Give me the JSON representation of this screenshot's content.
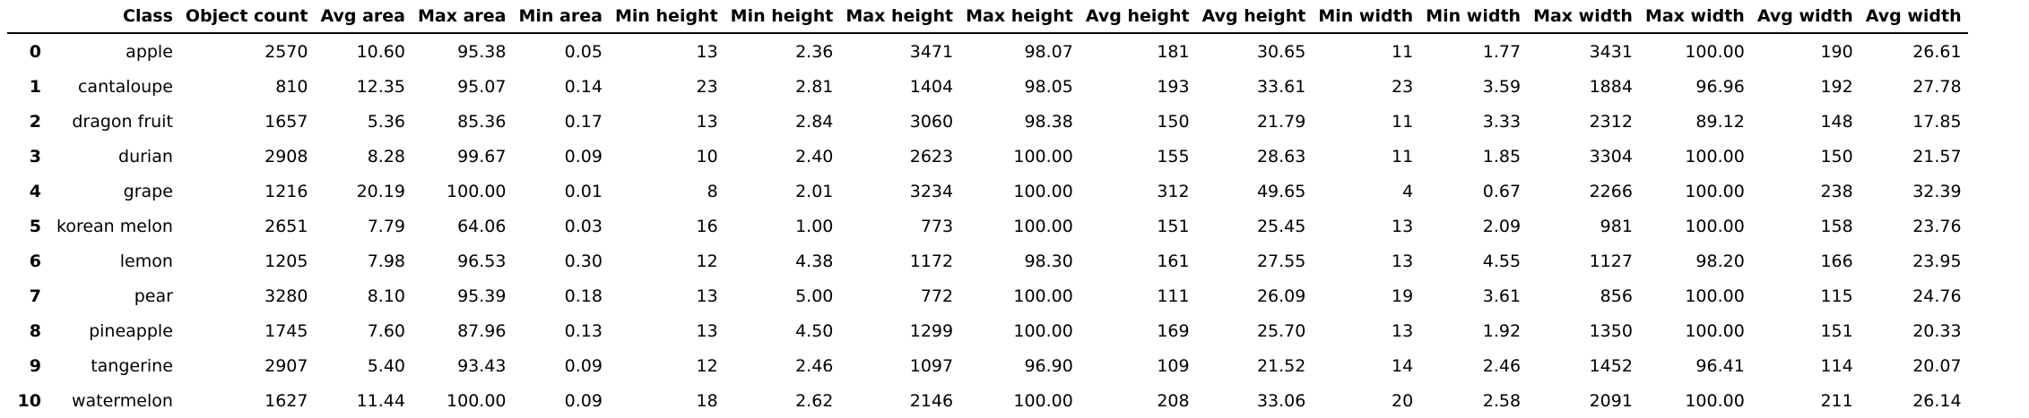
{
  "columns": [
    "",
    "Class",
    "Object count",
    "Avg area",
    "Max area",
    "Min area",
    "Min height",
    "Min height",
    "Max height",
    "Max height",
    "Avg height",
    "Avg height",
    "Min width",
    "Min width",
    "Max width",
    "Max width",
    "Avg width",
    "Avg width"
  ],
  "rows": [
    [
      "0",
      "apple",
      "2570",
      "10.60",
      "95.38",
      "0.05",
      "13",
      "2.36",
      "3471",
      "98.07",
      "181",
      "30.65",
      "11",
      "1.77",
      "3431",
      "100.00",
      "190",
      "26.61"
    ],
    [
      "1",
      "cantaloupe",
      "810",
      "12.35",
      "95.07",
      "0.14",
      "23",
      "2.81",
      "1404",
      "98.05",
      "193",
      "33.61",
      "23",
      "3.59",
      "1884",
      "96.96",
      "192",
      "27.78"
    ],
    [
      "2",
      "dragon fruit",
      "1657",
      "5.36",
      "85.36",
      "0.17",
      "13",
      "2.84",
      "3060",
      "98.38",
      "150",
      "21.79",
      "11",
      "3.33",
      "2312",
      "89.12",
      "148",
      "17.85"
    ],
    [
      "3",
      "durian",
      "2908",
      "8.28",
      "99.67",
      "0.09",
      "10",
      "2.40",
      "2623",
      "100.00",
      "155",
      "28.63",
      "11",
      "1.85",
      "3304",
      "100.00",
      "150",
      "21.57"
    ],
    [
      "4",
      "grape",
      "1216",
      "20.19",
      "100.00",
      "0.01",
      "8",
      "2.01",
      "3234",
      "100.00",
      "312",
      "49.65",
      "4",
      "0.67",
      "2266",
      "100.00",
      "238",
      "32.39"
    ],
    [
      "5",
      "korean melon",
      "2651",
      "7.79",
      "64.06",
      "0.03",
      "16",
      "1.00",
      "773",
      "100.00",
      "151",
      "25.45",
      "13",
      "2.09",
      "981",
      "100.00",
      "158",
      "23.76"
    ],
    [
      "6",
      "lemon",
      "1205",
      "7.98",
      "96.53",
      "0.30",
      "12",
      "4.38",
      "1172",
      "98.30",
      "161",
      "27.55",
      "13",
      "4.55",
      "1127",
      "98.20",
      "166",
      "23.95"
    ],
    [
      "7",
      "pear",
      "3280",
      "8.10",
      "95.39",
      "0.18",
      "13",
      "5.00",
      "772",
      "100.00",
      "111",
      "26.09",
      "19",
      "3.61",
      "856",
      "100.00",
      "115",
      "24.76"
    ],
    [
      "8",
      "pineapple",
      "1745",
      "7.60",
      "87.96",
      "0.13",
      "13",
      "4.50",
      "1299",
      "100.00",
      "169",
      "25.70",
      "13",
      "1.92",
      "1350",
      "100.00",
      "151",
      "20.33"
    ],
    [
      "9",
      "tangerine",
      "2907",
      "5.40",
      "93.43",
      "0.09",
      "12",
      "2.46",
      "1097",
      "96.90",
      "109",
      "21.52",
      "14",
      "2.46",
      "1452",
      "96.41",
      "114",
      "20.07"
    ],
    [
      "10",
      "watermelon",
      "1627",
      "11.44",
      "100.00",
      "0.09",
      "18",
      "2.62",
      "2146",
      "100.00",
      "208",
      "33.06",
      "20",
      "2.58",
      "2091",
      "100.00",
      "211",
      "26.14"
    ]
  ]
}
